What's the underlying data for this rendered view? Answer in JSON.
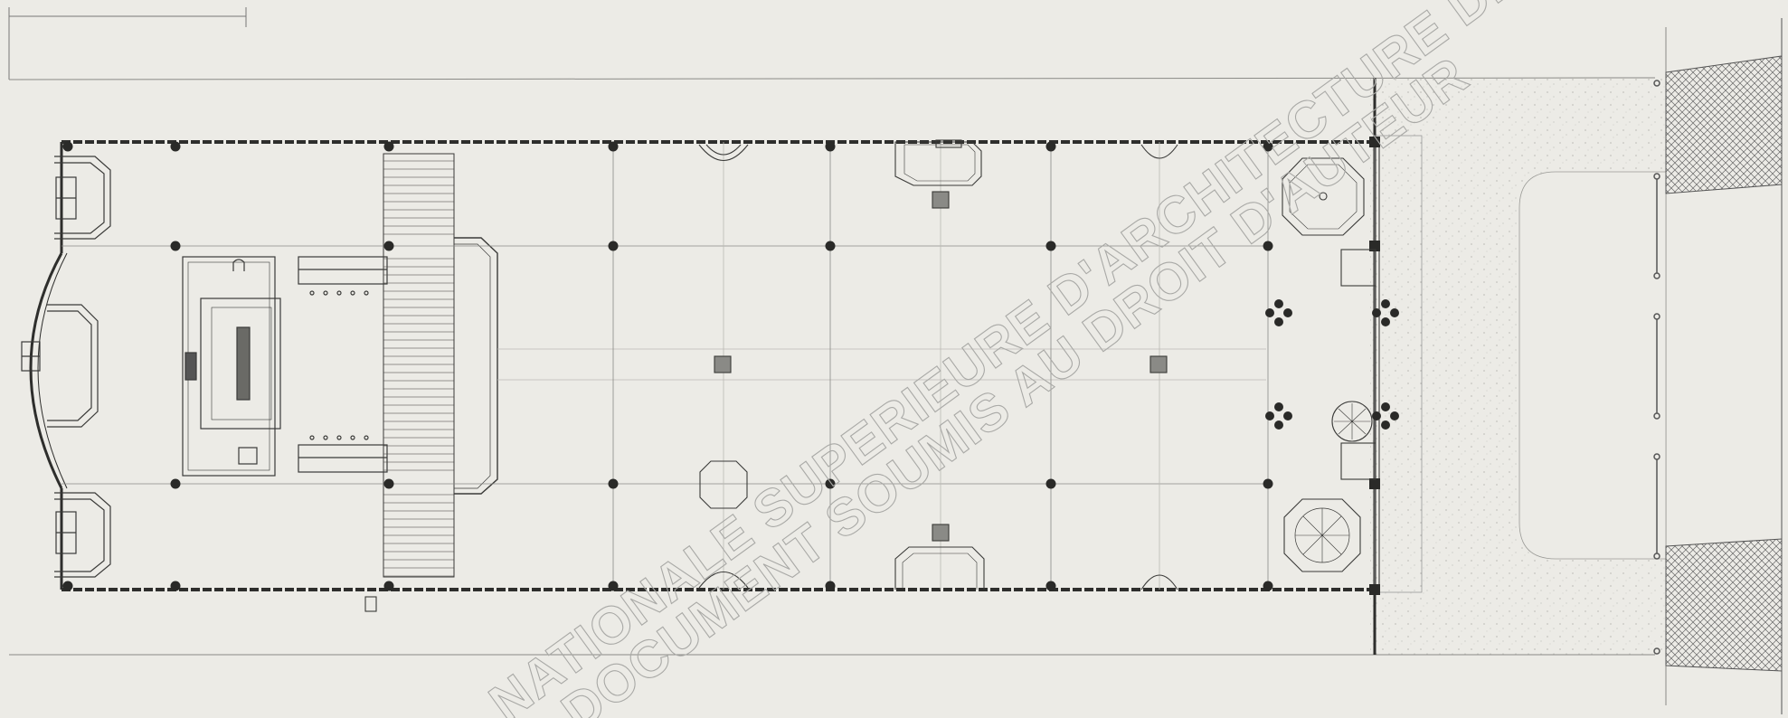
{
  "drawing": {
    "kind": "architectural floor plan",
    "paper_color": "#ecebe6",
    "ink_color": "#3a3a38",
    "column_grid": {
      "bays": 6,
      "aisles": 3
    }
  },
  "watermark": {
    "line1": "NATIONALE SUPERIEURE D'ARCHITECTURE DE",
    "line2": "DOCUMENT SOUMIS AU DROIT D'AUTEUR",
    "color": "#a9a9a6"
  }
}
